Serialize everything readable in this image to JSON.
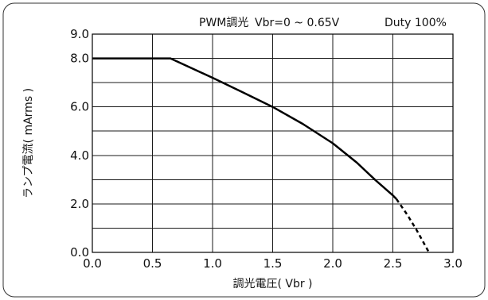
{
  "chart_data": {
    "type": "line",
    "header": {
      "text": "PWM調光",
      "condition": "Vbr=0 ~ 0.65V",
      "duty": "Duty 100%"
    },
    "xlabel": "調光電圧( Vbr )",
    "ylabel": "ランプ電流( mArms )",
    "xlim": [
      0,
      3.0
    ],
    "ylim": [
      0,
      9.0
    ],
    "x_ticks": [
      {
        "value": 0.0,
        "label": "0.0"
      },
      {
        "value": 0.5,
        "label": "0.5"
      },
      {
        "value": 1.0,
        "label": "1.0"
      },
      {
        "value": 1.5,
        "label": "1.5"
      },
      {
        "value": 2.0,
        "label": "2.0"
      },
      {
        "value": 2.5,
        "label": "2.5"
      },
      {
        "value": 3.0,
        "label": "3.0"
      }
    ],
    "y_ticks": [
      {
        "value": 0.0,
        "label": "0.0"
      },
      {
        "value": 2.0,
        "label": "2.0"
      },
      {
        "value": 4.0,
        "label": "4.0"
      },
      {
        "value": 6.0,
        "label": "6.0"
      },
      {
        "value": 8.0,
        "label": "8.0"
      },
      {
        "value": 9.0,
        "label": "9.0"
      }
    ],
    "y_gridlines": [
      1.0,
      2.0,
      3.0,
      4.0,
      5.0,
      6.0,
      7.0,
      8.0,
      9.0
    ],
    "grid": true,
    "series": [
      {
        "style": "solid",
        "x": [
          0.0,
          0.65,
          1.0,
          1.25,
          1.5,
          1.75,
          2.0,
          2.2,
          2.35,
          2.5,
          2.53
        ],
        "y": [
          8.0,
          8.0,
          7.2,
          6.6,
          6.0,
          5.3,
          4.5,
          3.7,
          3.0,
          2.35,
          2.2
        ]
      },
      {
        "style": "dashed",
        "x": [
          2.53,
          2.62,
          2.7,
          2.75,
          2.8
        ],
        "y": [
          2.2,
          1.55,
          0.9,
          0.45,
          0.0
        ]
      }
    ]
  }
}
